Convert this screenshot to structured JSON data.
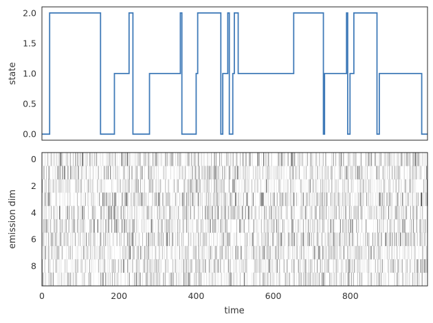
{
  "chart_data": [
    {
      "type": "line",
      "ylabel": "state",
      "xlabel": "",
      "xlim": [
        0,
        1000
      ],
      "ylim": [
        -0.1,
        2.1
      ],
      "yticks": [
        0.0,
        0.5,
        1.0,
        1.5,
        2.0
      ],
      "ytick_labels": [
        "0.0",
        "0.5",
        "1.0",
        "1.5",
        "2.0"
      ],
      "line_color": "#3f7ab8",
      "grid": false,
      "legend": "none",
      "series": [
        {
          "x": [
            0,
            20,
            20,
            152,
            152,
            188,
            188,
            226,
            226,
            236,
            236,
            279,
            279,
            359,
            359,
            363,
            363,
            400,
            400,
            404,
            404,
            464,
            464,
            469,
            469,
            482,
            482,
            486,
            486,
            495,
            495,
            499,
            499,
            509,
            509,
            653,
            653,
            730,
            730,
            733,
            733,
            790,
            790,
            793,
            793,
            799,
            799,
            809,
            809,
            869,
            869,
            875,
            875,
            985,
            985,
            1000
          ],
          "y": [
            0,
            0,
            2,
            2,
            0,
            0,
            1,
            1,
            2,
            2,
            0,
            0,
            1,
            1,
            2,
            2,
            0,
            0,
            1,
            1,
            2,
            2,
            0,
            0,
            1,
            1,
            2,
            2,
            0,
            0,
            1,
            1,
            2,
            2,
            1,
            1,
            2,
            2,
            0,
            0,
            1,
            1,
            2,
            2,
            0,
            0,
            1,
            1,
            2,
            2,
            0,
            0,
            1,
            1,
            0,
            0
          ]
        }
      ]
    },
    {
      "type": "heatmap",
      "xlabel": "time",
      "ylabel": "emission dim",
      "xlim": [
        0,
        1000
      ],
      "ylim": [
        9.5,
        -0.5
      ],
      "xticks": [
        0,
        200,
        400,
        600,
        800
      ],
      "xtick_labels": [
        "0",
        "200",
        "400",
        "600",
        "800"
      ],
      "yticks": [
        0,
        2,
        4,
        6,
        8
      ],
      "ytick_labels": [
        "0",
        "2",
        "4",
        "6",
        "8"
      ],
      "rows": 10,
      "columns": 1000,
      "colormap": "Greys",
      "seed": 7
    }
  ]
}
